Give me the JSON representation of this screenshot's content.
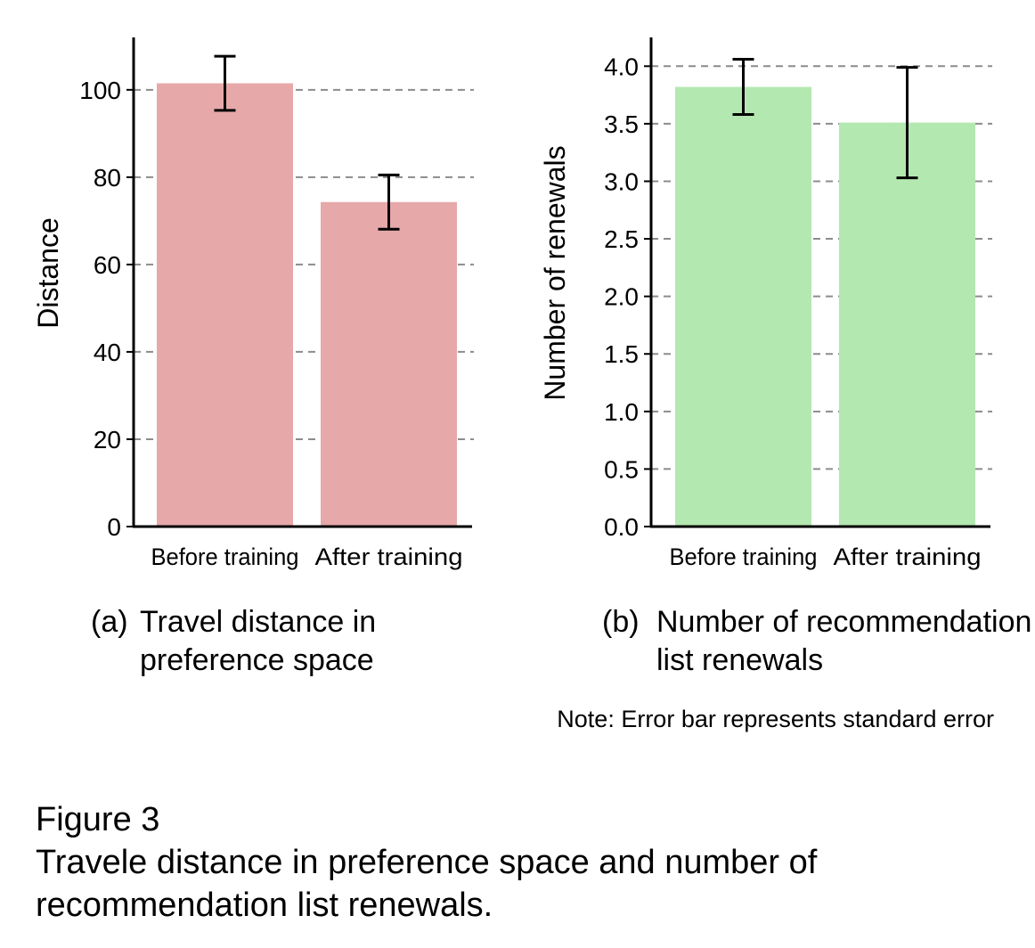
{
  "chart_data": [
    {
      "type": "bar",
      "panel_label": "(a)",
      "caption_lines": [
        "Travel distance in",
        "preference space"
      ],
      "title": "",
      "xlabel": "",
      "ylabel": "Distance",
      "categories": [
        "Before training",
        "After training"
      ],
      "values": [
        101.5,
        74.3
      ],
      "error": [
        6.2,
        6.2
      ],
      "ylim": [
        0,
        112
      ],
      "yticks": [
        0,
        20,
        40,
        60,
        80,
        100
      ],
      "ytick_labels": [
        "0",
        "20",
        "40",
        "60",
        "80",
        "100"
      ],
      "grid": "horizontal dashed",
      "legend": "none",
      "color": "#e6a8a9"
    },
    {
      "type": "bar",
      "panel_label": "(b)",
      "caption_lines": [
        "Number of recommendation",
        "list renewals"
      ],
      "title": "",
      "xlabel": "",
      "ylabel": "Number of renewals",
      "categories": [
        "Before training",
        "After training"
      ],
      "values": [
        3.82,
        3.51
      ],
      "error": [
        0.24,
        0.48
      ],
      "ylim": [
        0,
        4.25
      ],
      "yticks": [
        0,
        0.5,
        1,
        1.5,
        2,
        2.5,
        3,
        3.5,
        4
      ],
      "ytick_labels": [
        "0.0",
        "0.5",
        "1.0",
        "1.5",
        "2.0",
        "2.5",
        "3.0",
        "3.5",
        "4.0"
      ],
      "grid": "horizontal dashed",
      "legend": "none",
      "color": "#b3e8b0"
    }
  ],
  "note": "Note: Error bar represents standard error",
  "figure": {
    "label": "Figure 3",
    "caption_line1": "Travele distance in preference space and number of",
    "caption_line2": "recommendation list renewals."
  }
}
